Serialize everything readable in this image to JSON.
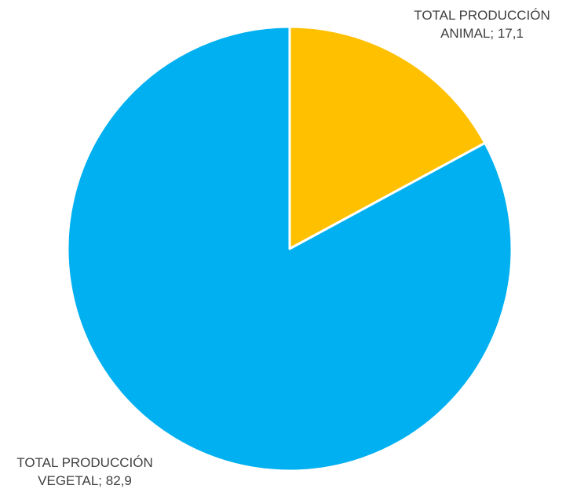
{
  "chart_data": {
    "type": "pie",
    "title": "",
    "slices": [
      {
        "name": "TOTAL PRODUCCIÓN ANIMAL",
        "value": 17.1,
        "label_line1": "TOTAL PRODUCCIÓN",
        "label_line2": "ANIMAL; 17,1",
        "color": "#FFC000"
      },
      {
        "name": "TOTAL PRODUCCIÓN VEGETAL",
        "value": 82.9,
        "label_line1": "TOTAL PRODUCCIÓN",
        "label_line2": "VEGETAL; 82,9",
        "color": "#00B0F0"
      }
    ],
    "start_angle": "12 o'clock",
    "direction": "clockwise",
    "legend": "none"
  }
}
